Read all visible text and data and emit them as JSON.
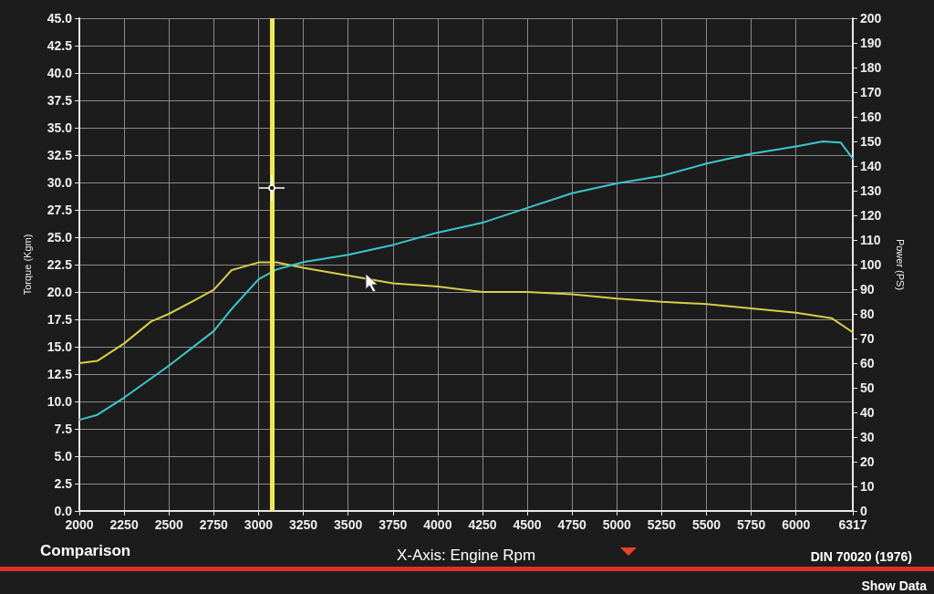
{
  "chart_data": {
    "type": "line",
    "xlabel": "X-Axis: Engine Rpm",
    "ylabel": "Torque (Kgm)",
    "y2label": "Power (PS)",
    "annotations": [
      "Comparison",
      "DIN 70020 (1976)",
      "Show Data"
    ],
    "xlim": [
      2000,
      6317
    ],
    "xticks": [
      2000,
      2250,
      2500,
      2750,
      3000,
      3250,
      3500,
      3750,
      4000,
      4250,
      4500,
      4750,
      5000,
      5250,
      5500,
      5750,
      6000,
      6317
    ],
    "ylim": [
      0,
      45
    ],
    "yticks": [
      {
        "value": 0,
        "label": "0.0"
      },
      {
        "value": 2.5,
        "label": "2.5"
      },
      {
        "value": 5,
        "label": "5.0"
      },
      {
        "value": 7.5,
        "label": "7.5"
      },
      {
        "value": 10,
        "label": "10.0"
      },
      {
        "value": 12.5,
        "label": "12.5"
      },
      {
        "value": 15,
        "label": "15.0"
      },
      {
        "value": 17.5,
        "label": "17.5"
      },
      {
        "value": 20,
        "label": "20.0"
      },
      {
        "value": 22.5,
        "label": "22.5"
      },
      {
        "value": 25,
        "label": "25.0"
      },
      {
        "value": 27.5,
        "label": "27.5"
      },
      {
        "value": 30,
        "label": "30.0"
      },
      {
        "value": 32.5,
        "label": "32.5"
      },
      {
        "value": 35,
        "label": "35.0"
      },
      {
        "value": 37.5,
        "label": "37.5"
      },
      {
        "value": 40,
        "label": "40.0"
      },
      {
        "value": 42.5,
        "label": "42.5"
      },
      {
        "value": 45,
        "label": "45.0"
      }
    ],
    "y2lim": [
      0,
      200
    ],
    "y2ticks": [
      0,
      10,
      20,
      30,
      40,
      50,
      60,
      70,
      80,
      90,
      100,
      110,
      120,
      130,
      140,
      150,
      160,
      170,
      180,
      190,
      200
    ],
    "grid": true,
    "marker": "none",
    "line_style": "solid",
    "ref_lines": [
      {
        "axis": "x",
        "value": 3075,
        "color": "#f2e84a"
      }
    ],
    "series": [
      {
        "color": "#d8cf4a",
        "x": [
          2000,
          2100,
          2250,
          2400,
          2500,
          2650,
          2750,
          2850,
          3000,
          3100,
          3250,
          3500,
          3750,
          4000,
          4250,
          4500,
          4750,
          5000,
          5250,
          5500,
          5750,
          6000,
          6200,
          6300,
          6317
        ],
        "values": [
          13.5,
          13.7,
          15.3,
          17.3,
          18,
          19.3,
          20.2,
          22,
          22.7,
          22.7,
          22.2,
          21.5,
          20.8,
          20.5,
          20,
          20,
          19.8,
          19.4,
          19.1,
          18.9,
          18.5,
          18.1,
          17.6,
          16.5,
          16.3
        ]
      },
      {
        "color": "#3cc8cc",
        "axis": "y2",
        "x": [
          2000,
          2100,
          2250,
          2500,
          2750,
          2850,
          3000,
          3100,
          3250,
          3500,
          3750,
          4000,
          4250,
          4500,
          4750,
          5000,
          5250,
          5500,
          5750,
          6000,
          6150,
          6250,
          6317
        ],
        "values": [
          37,
          39,
          46,
          59,
          73,
          82,
          94,
          98,
          101,
          104,
          108,
          113,
          117,
          123,
          129,
          133,
          136,
          141,
          145,
          148,
          150,
          149.5,
          143
        ]
      }
    ]
  }
}
